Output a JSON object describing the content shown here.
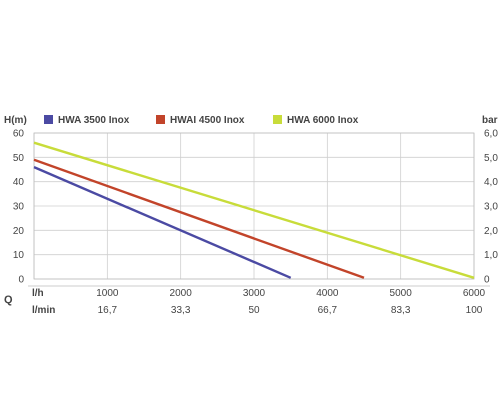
{
  "chart_data": {
    "type": "line",
    "title": "",
    "ylabel_left": "H(m)",
    "ylabel_right": "bar",
    "x_row_label_lh": "l/h",
    "x_row_label_lmin": "l/min",
    "x_axis_symbol": "Q",
    "xlim": [
      0,
      6000
    ],
    "ylim": [
      0,
      60
    ],
    "ylim_right": [
      0,
      6.0
    ],
    "x_ticks_lh": [
      "0",
      "1000",
      "2000",
      "3000",
      "4000",
      "5000",
      "6000"
    ],
    "x_ticks_lh_values": [
      0,
      1000,
      2000,
      3000,
      4000,
      5000,
      6000
    ],
    "x_ticks_lmin": [
      "16,7",
      "33,3",
      "50",
      "66,7",
      "83,3",
      "100"
    ],
    "x_ticks_lmin_values": [
      1000,
      2000,
      3000,
      4000,
      5000,
      6000
    ],
    "y_ticks_left": [
      "0",
      "10",
      "20",
      "30",
      "40",
      "50",
      "60"
    ],
    "y_ticks_left_values": [
      0,
      10,
      20,
      30,
      40,
      50,
      60
    ],
    "y_ticks_right": [
      "0",
      "1,0",
      "2,0",
      "3,0",
      "4,0",
      "5,0",
      "6,0"
    ],
    "y_ticks_right_values": [
      0,
      10,
      20,
      30,
      40,
      50,
      60
    ],
    "grid": true,
    "legend_position": "top",
    "series": [
      {
        "name": "HWA 3500 Inox",
        "color": "#4b4aa3",
        "points": [
          [
            0,
            46
          ],
          [
            3500,
            0.5
          ]
        ]
      },
      {
        "name": "HWAI 4500 Inox",
        "color": "#c2442a",
        "points": [
          [
            0,
            49
          ],
          [
            4500,
            0.5
          ]
        ]
      },
      {
        "name": "HWA 6000 Inox",
        "color": "#c8dc3a",
        "points": [
          [
            0,
            56
          ],
          [
            6000,
            0.5
          ]
        ]
      }
    ]
  }
}
